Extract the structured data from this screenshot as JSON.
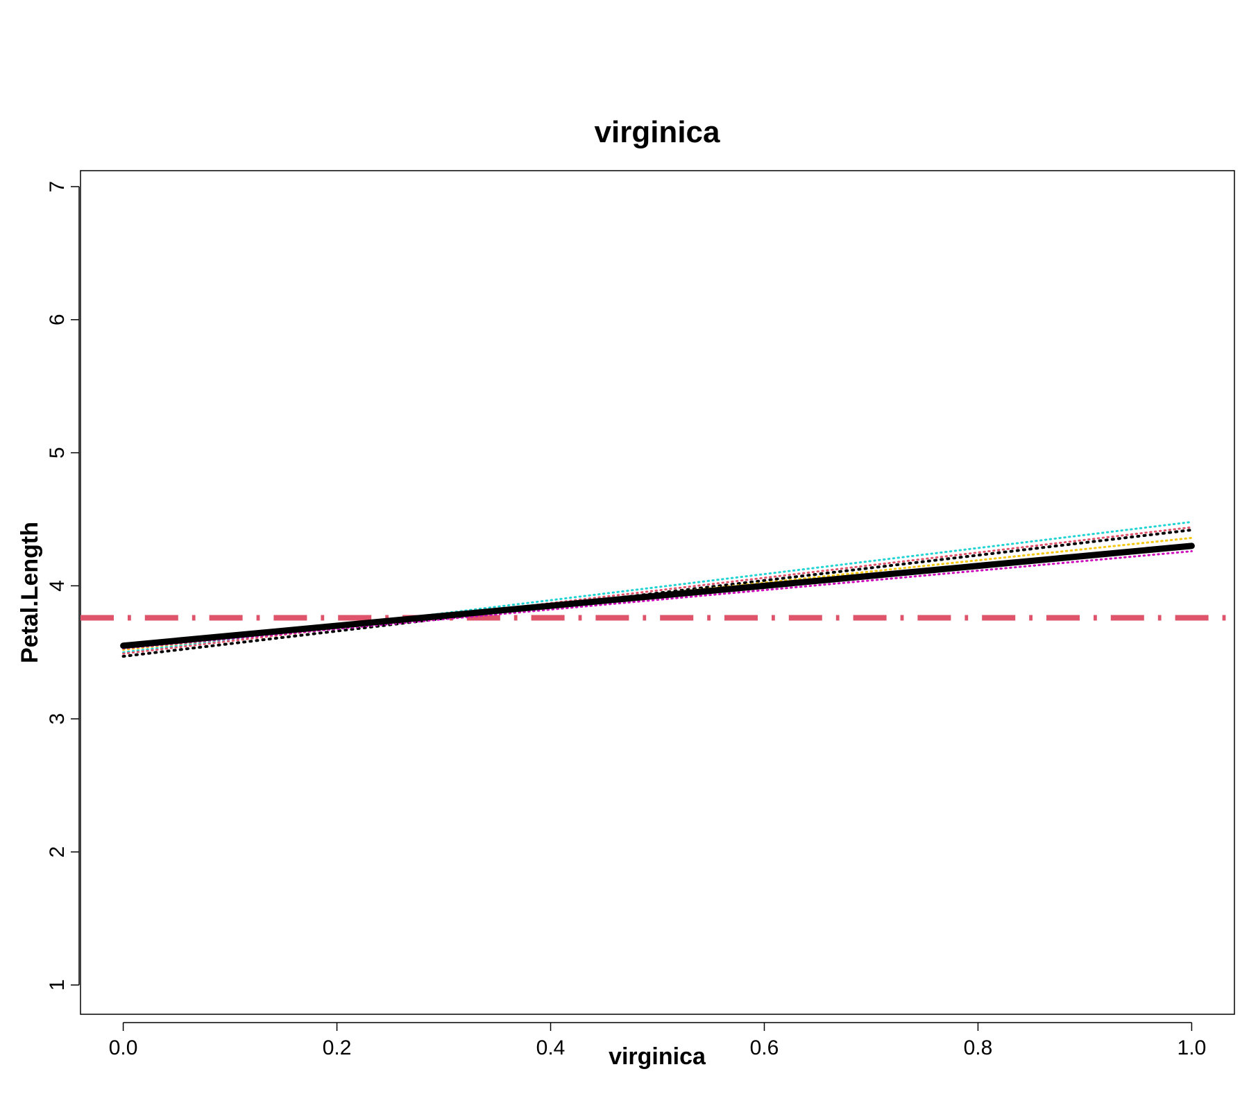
{
  "chart_data": {
    "type": "line",
    "title": "virginica",
    "xlabel": "virginica",
    "ylabel": "Petal.Length",
    "xlim": [
      -0.04,
      1.04
    ],
    "ylim": [
      0.78,
      7.12
    ],
    "xticks": [
      0.0,
      0.2,
      0.4,
      0.6,
      0.8,
      1.0
    ],
    "xtick_labels": [
      "0.0",
      "0.2",
      "0.4",
      "0.6",
      "0.8",
      "1.0"
    ],
    "yticks": [
      1,
      2,
      3,
      4,
      5,
      6,
      7
    ],
    "ytick_labels": [
      "1",
      "2",
      "3",
      "4",
      "5",
      "6",
      "7"
    ],
    "grid": false,
    "legend": "none",
    "series": [
      {
        "x": [
          0,
          1
        ],
        "y": [
          3.5,
          4.48
        ],
        "color": "#22d3d3",
        "style": "dotted",
        "width": 3
      },
      {
        "x": [
          0,
          1
        ],
        "y": [
          3.49,
          4.44
        ],
        "color": "#df536b",
        "style": "dotted",
        "width": 3
      },
      {
        "x": [
          0,
          1
        ],
        "y": [
          3.47,
          4.42
        ],
        "color": "#000000",
        "style": "dotted",
        "width": 4
      },
      {
        "x": [
          0,
          1
        ],
        "y": [
          3.52,
          4.36
        ],
        "color": "#f5c710",
        "style": "dotted",
        "width": 3
      },
      {
        "x": [
          0,
          1
        ],
        "y": [
          3.53,
          4.26
        ],
        "color": "#cd0bbc",
        "style": "dotted",
        "width": 3
      },
      {
        "x": [
          0,
          1
        ],
        "y": [
          3.55,
          4.3
        ],
        "color": "#000000",
        "style": "solid",
        "width": 9
      }
    ],
    "reference_lines": [
      {
        "orientation": "horizontal",
        "y": 3.76,
        "color": "#df536b",
        "style": "dashdot",
        "width": 8
      }
    ]
  }
}
